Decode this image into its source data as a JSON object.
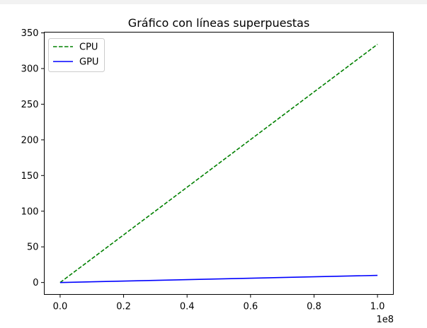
{
  "chart_data": {
    "type": "line",
    "title": "Gráfico con líneas superpuestas",
    "xlabel": "",
    "ylabel": "",
    "x_offset_label": "1e8",
    "xlim": [
      -0.05,
      1.05
    ],
    "ylim": [
      -16.7,
      351
    ],
    "x_ticks": [
      0.0,
      0.2,
      0.4,
      0.6,
      0.8,
      1.0
    ],
    "x_tick_labels": [
      "0.0",
      "0.2",
      "0.4",
      "0.6",
      "0.8",
      "1.0"
    ],
    "y_ticks": [
      0,
      50,
      100,
      150,
      200,
      250,
      300,
      350
    ],
    "y_tick_labels": [
      "0",
      "50",
      "100",
      "150",
      "200",
      "250",
      "300",
      "350"
    ],
    "grid": false,
    "legend_position": "top-left",
    "series": [
      {
        "name": "CPU",
        "color": "#008000",
        "style": "dashed",
        "x": [
          0.0,
          1.0
        ],
        "y": [
          0,
          334
        ]
      },
      {
        "name": "GPU",
        "color": "#0000ff",
        "style": "solid",
        "x": [
          0.0,
          1.0
        ],
        "y": [
          0,
          10
        ]
      }
    ]
  }
}
